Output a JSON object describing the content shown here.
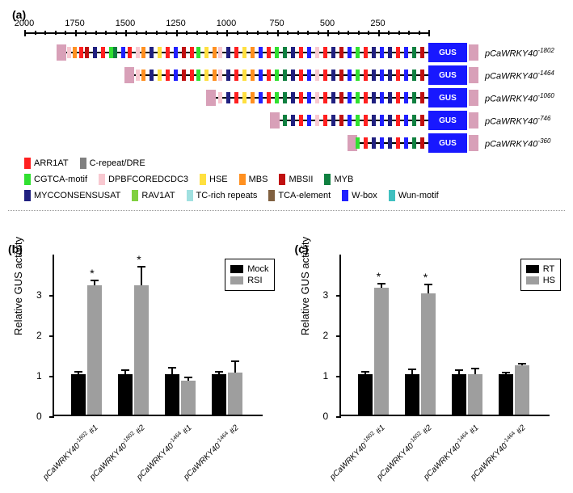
{
  "panel_labels": {
    "a": "(a)",
    "b": "(b)",
    "c": "(c)"
  },
  "ruler": {
    "ticks": [
      2000,
      1750,
      1500,
      1250,
      1000,
      750,
      500,
      250
    ],
    "range": 2000
  },
  "constructs": [
    {
      "name": "pCaWRKY40",
      "sup": "-1802",
      "length": 1802
    },
    {
      "name": "pCaWRKY40",
      "sup": "-1464",
      "length": 1464
    },
    {
      "name": "pCaWRKY40",
      "sup": "-1060",
      "length": 1060
    },
    {
      "name": "pCaWRKY40",
      "sup": "-746",
      "length": 746
    },
    {
      "name": "pCaWRKY40",
      "sup": "-360",
      "length": 360
    }
  ],
  "gus_label": "GUS",
  "motif_colors": {
    "ARR1AT": "#ff2020",
    "C-repeat/DRE": "#808080",
    "CGTCA-motif": "#30e030",
    "DPBFCOREDCDC3": "#f8c8d0",
    "HSE": "#ffe040",
    "MBS": "#ff9020",
    "MBSII": "#c01010",
    "MYB": "#108040",
    "MYCCONSENSUSAT": "#202080",
    "RAV1AT": "#80d040",
    "TC-rich repeats": "#a0e0e0",
    "TCA-element": "#806040",
    "W-box": "#2020ff",
    "Wun-motif": "#40c0c0"
  },
  "motif_legend_rows": [
    [
      "ARR1AT",
      "C-repeat/DRE"
    ],
    [
      "CGTCA-motif",
      "DPBFCOREDCDC3",
      "HSE",
      "MBS",
      "MBSII",
      "MYB"
    ],
    [
      "MYCCONSENSUSAT",
      "RAV1AT",
      "TC-rich repeats",
      "TCA-element",
      "W-box",
      "Wun-motif"
    ]
  ],
  "motifs_on_line": [
    {
      "pos": 1790,
      "c": "DPBFCOREDCDC3"
    },
    {
      "pos": 1760,
      "c": "MBS"
    },
    {
      "pos": 1730,
      "c": "ARR1AT"
    },
    {
      "pos": 1700,
      "c": "MBSII"
    },
    {
      "pos": 1660,
      "c": "MYCCONSENSUSAT"
    },
    {
      "pos": 1620,
      "c": "ARR1AT"
    },
    {
      "pos": 1580,
      "c": "CGTCA-motif"
    },
    {
      "pos": 1560,
      "c": "MYB"
    },
    {
      "pos": 1520,
      "c": "W-box"
    },
    {
      "pos": 1490,
      "c": "ARR1AT"
    },
    {
      "pos": 1450,
      "c": "DPBFCOREDCDC3"
    },
    {
      "pos": 1420,
      "c": "MBS"
    },
    {
      "pos": 1380,
      "c": "MYCCONSENSUSAT"
    },
    {
      "pos": 1340,
      "c": "HSE"
    },
    {
      "pos": 1300,
      "c": "ARR1AT"
    },
    {
      "pos": 1260,
      "c": "W-box"
    },
    {
      "pos": 1220,
      "c": "MBSII"
    },
    {
      "pos": 1180,
      "c": "ARR1AT"
    },
    {
      "pos": 1150,
      "c": "CGTCA-motif"
    },
    {
      "pos": 1110,
      "c": "HSE"
    },
    {
      "pos": 1070,
      "c": "MBS"
    },
    {
      "pos": 1040,
      "c": "DPBFCOREDCDC3"
    },
    {
      "pos": 1000,
      "c": "MYCCONSENSUSAT"
    },
    {
      "pos": 960,
      "c": "ARR1AT"
    },
    {
      "pos": 920,
      "c": "HSE"
    },
    {
      "pos": 880,
      "c": "MBS"
    },
    {
      "pos": 840,
      "c": "W-box"
    },
    {
      "pos": 800,
      "c": "ARR1AT"
    },
    {
      "pos": 760,
      "c": "CGTCA-motif"
    },
    {
      "pos": 720,
      "c": "MYB"
    },
    {
      "pos": 680,
      "c": "MYCCONSENSUSAT"
    },
    {
      "pos": 640,
      "c": "ARR1AT"
    },
    {
      "pos": 600,
      "c": "W-box"
    },
    {
      "pos": 560,
      "c": "DPBFCOREDCDC3"
    },
    {
      "pos": 520,
      "c": "ARR1AT"
    },
    {
      "pos": 480,
      "c": "MYCCONSENSUSAT"
    },
    {
      "pos": 440,
      "c": "MBSII"
    },
    {
      "pos": 400,
      "c": "W-box"
    },
    {
      "pos": 360,
      "c": "CGTCA-motif"
    },
    {
      "pos": 320,
      "c": "ARR1AT"
    },
    {
      "pos": 280,
      "c": "MYCCONSENSUSAT"
    },
    {
      "pos": 240,
      "c": "W-box"
    },
    {
      "pos": 200,
      "c": "MYCCONSENSUSAT"
    },
    {
      "pos": 160,
      "c": "ARR1AT"
    },
    {
      "pos": 120,
      "c": "W-box"
    },
    {
      "pos": 80,
      "c": "MYB"
    },
    {
      "pos": 40,
      "c": "MBSII"
    }
  ],
  "chart_b": {
    "y_label": "Relative GUS activity",
    "y_max": 4,
    "y_ticks": [
      0,
      1,
      2,
      3
    ],
    "legend": [
      {
        "label": "Mock",
        "color": "#000"
      },
      {
        "label": "RSI",
        "color": "#9e9e9e"
      }
    ],
    "groups": [
      {
        "label": "pCaWRKY40",
        "sup": "-1802",
        "tag": "#1",
        "mock": 1.0,
        "mock_err": 0.05,
        "trt": 3.2,
        "trt_err": 0.1,
        "star": true
      },
      {
        "label": "pCaWRKY40",
        "sup": "-1802",
        "tag": "#2",
        "mock": 1.0,
        "mock_err": 0.08,
        "trt": 3.2,
        "trt_err": 0.45,
        "star": true
      },
      {
        "label": "pCaWRKY40",
        "sup": "-1464",
        "tag": "#1",
        "mock": 1.0,
        "mock_err": 0.15,
        "trt": 0.85,
        "trt_err": 0.05,
        "star": false
      },
      {
        "label": "pCaWRKY40",
        "sup": "-1464",
        "tag": "#2",
        "mock": 1.0,
        "mock_err": 0.05,
        "trt": 1.05,
        "trt_err": 0.25,
        "star": false
      }
    ]
  },
  "chart_c": {
    "y_label": "Relative GUS activity",
    "y_max": 4,
    "y_ticks": [
      0,
      1,
      2,
      3
    ],
    "legend": [
      {
        "label": "RT",
        "color": "#000"
      },
      {
        "label": "HS",
        "color": "#9e9e9e"
      }
    ],
    "groups": [
      {
        "label": "pCaWRKY40",
        "sup": "-1802",
        "tag": "#1",
        "mock": 1.0,
        "mock_err": 0.05,
        "trt": 3.15,
        "trt_err": 0.08,
        "star": true
      },
      {
        "label": "pCaWRKY40",
        "sup": "-1802",
        "tag": "#2",
        "mock": 1.0,
        "mock_err": 0.1,
        "trt": 3.0,
        "trt_err": 0.2,
        "star": true
      },
      {
        "label": "pCaWRKY40",
        "sup": "-1464",
        "tag": "#1",
        "mock": 1.0,
        "mock_err": 0.08,
        "trt": 1.0,
        "trt_err": 0.12,
        "star": false
      },
      {
        "label": "pCaWRKY40",
        "sup": "-1464",
        "tag": "#2",
        "mock": 1.0,
        "mock_err": 0.03,
        "trt": 1.22,
        "trt_err": 0.03,
        "star": false
      }
    ]
  }
}
